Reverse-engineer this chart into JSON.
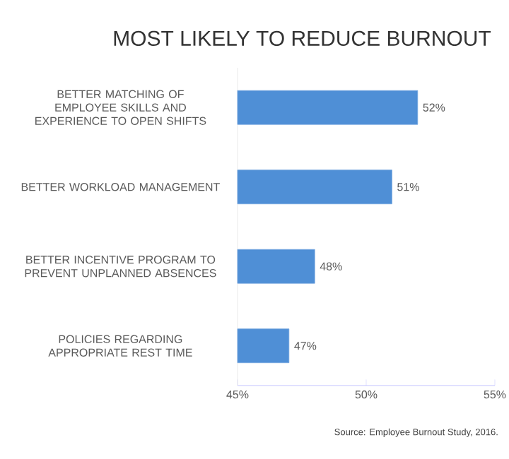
{
  "chart_data": {
    "type": "bar",
    "orientation": "horizontal",
    "title": "MOST LIKELY TO REDUCE BURNOUT",
    "categories": [
      "BETTER MATCHING OF EMPLOYEE SKILLS AND EXPERIENCE TO OPEN SHIFTS",
      "BETTER WORKLOAD MANAGEMENT",
      "BETTER INCENTIVE PROGRAM TO PREVENT UNPLANNED ABSENCES",
      "POLICIES REGARDING APPROPRIATE REST TIME"
    ],
    "values": [
      52,
      51,
      48,
      47
    ],
    "value_labels": [
      "52%",
      "51%",
      "48%",
      "47%"
    ],
    "color": "#4f8fd6",
    "xlim": [
      45,
      55
    ],
    "xticks": [
      {
        "value": 45,
        "label": "45%"
      },
      {
        "value": 50,
        "label": "50%"
      },
      {
        "value": 55,
        "label": "55%"
      }
    ],
    "grid": false,
    "annotations": [
      "Source: Employee Burnout Study, 2016."
    ]
  }
}
